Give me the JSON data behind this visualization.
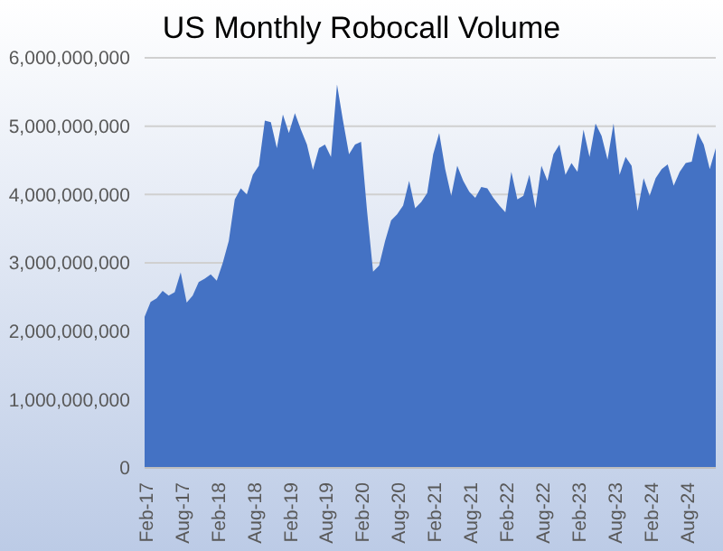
{
  "chart_data": {
    "type": "area",
    "title": "US Monthly Robocall Volume",
    "categories": [
      "Feb-17",
      null,
      null,
      null,
      null,
      null,
      "Aug-17",
      null,
      null,
      null,
      null,
      null,
      "Feb-18",
      null,
      null,
      null,
      null,
      null,
      "Aug-18",
      null,
      null,
      null,
      null,
      null,
      "Feb-19",
      null,
      null,
      null,
      null,
      null,
      "Aug-19",
      null,
      null,
      null,
      null,
      null,
      "Feb-20",
      null,
      null,
      null,
      null,
      null,
      "Aug-20",
      null,
      null,
      null,
      null,
      null,
      "Feb-21",
      null,
      null,
      null,
      null,
      null,
      "Aug-21",
      null,
      null,
      null,
      null,
      null,
      "Feb-22",
      null,
      null,
      null,
      null,
      null,
      "Aug-22",
      null,
      null,
      null,
      null,
      null,
      "Feb-23",
      null,
      null,
      null,
      null,
      null,
      "Aug-23",
      null,
      null,
      null,
      null,
      null,
      "Feb-24",
      null,
      null,
      null,
      null,
      null,
      "Aug-24",
      null,
      null,
      null,
      null,
      null
    ],
    "series": [
      {
        "color": "#4472c4",
        "values": [
          2210000000,
          2430000000,
          2480000000,
          2590000000,
          2520000000,
          2570000000,
          2860000000,
          2420000000,
          2520000000,
          2720000000,
          2770000000,
          2830000000,
          2740000000,
          3000000000,
          3320000000,
          3930000000,
          4090000000,
          4000000000,
          4290000000,
          4420000000,
          5080000000,
          5060000000,
          4680000000,
          5170000000,
          4900000000,
          5190000000,
          4950000000,
          4730000000,
          4360000000,
          4680000000,
          4730000000,
          4550000000,
          5610000000,
          5080000000,
          4590000000,
          4730000000,
          4770000000,
          3760000000,
          2870000000,
          2960000000,
          3320000000,
          3620000000,
          3710000000,
          3840000000,
          4200000000,
          3800000000,
          3890000000,
          4020000000,
          4590000000,
          4900000000,
          4370000000,
          3980000000,
          4420000000,
          4200000000,
          4040000000,
          3950000000,
          4110000000,
          4090000000,
          3950000000,
          3840000000,
          3740000000,
          4330000000,
          3930000000,
          3980000000,
          4290000000,
          3800000000,
          4420000000,
          4200000000,
          4590000000,
          4730000000,
          4290000000,
          4460000000,
          4330000000,
          4950000000,
          4550000000,
          5040000000,
          4860000000,
          4510000000,
          5040000000,
          4290000000,
          4550000000,
          4420000000,
          3760000000,
          4240000000,
          3980000000,
          4240000000,
          4370000000,
          4440000000,
          4130000000,
          4330000000,
          4460000000,
          4480000000,
          4900000000,
          4730000000,
          4370000000,
          4680000000
        ]
      }
    ],
    "ylim": [
      0,
      6000000000
    ],
    "yticks": [
      0,
      {
        "value": 1000000000,
        "label": "1,000,000,000"
      },
      {
        "value": 2000000000,
        "label": "2,000,000,000"
      },
      {
        "value": 3000000000,
        "label": "3,000,000,000"
      },
      {
        "value": 4000000000,
        "label": "4,000,000,000"
      },
      {
        "value": 5000000000,
        "label": "5,000,000,000"
      },
      {
        "value": 6000000000,
        "label": "6,000,000,000"
      }
    ],
    "grid": "y",
    "legend": false
  }
}
